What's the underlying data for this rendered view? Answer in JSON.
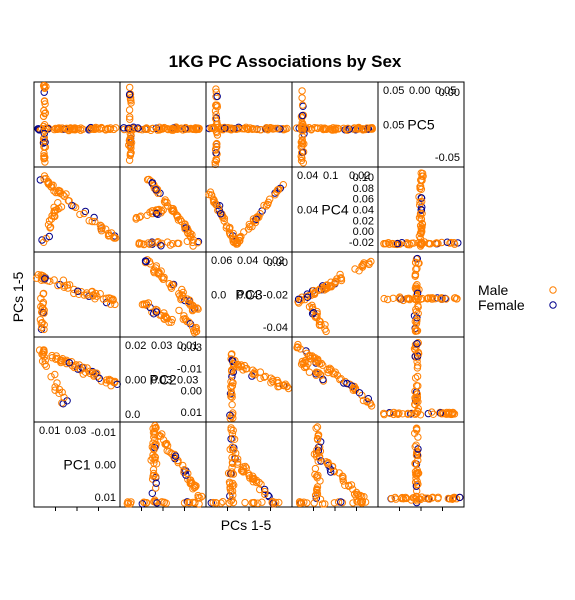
{
  "chart_data": {
    "type": "scatter",
    "subtype": "scatterplot-matrix",
    "title": "1KG PC Associations by Sex",
    "xlabel": "PCs 1-5",
    "ylabel": "PCs 1-5",
    "variables": [
      "PC1",
      "PC2",
      "PC3",
      "PC4",
      "PC5"
    ],
    "series": [
      {
        "name": "Male",
        "color": "#ff7f00"
      },
      {
        "name": "Female",
        "color": "#00008b"
      }
    ],
    "legend": {
      "position": "right",
      "marker": "open-circle"
    },
    "axis_ticks": {
      "PC1": {
        "major": [
          "-0.01",
          "0.00",
          "0.01"
        ],
        "minor": [
          "0.01",
          "0.03"
        ]
      },
      "PC2": {
        "major": [
          "-0.03",
          "-0.01",
          "0.00",
          "0.01"
        ],
        "minor": [
          "0.02",
          "0.03",
          "0.01",
          "0.00",
          "0.03",
          "0.03",
          "0.0"
        ]
      },
      "PC3": {
        "major": [
          "0.00",
          "-0.02",
          "-0.04"
        ],
        "minor": [
          "0.06",
          "0.04",
          "0.02",
          "0.0",
          "0.04"
        ]
      },
      "PC4": {
        "major": [
          "0.10",
          "0.08",
          "0.06",
          "0.04",
          "0.02",
          "0.00",
          "-0.02"
        ],
        "minor": [
          "0.04",
          "0.1",
          "0.02",
          "0.04"
        ]
      },
      "PC5": {
        "major": [
          "0.00",
          "-0.05"
        ],
        "minor": [
          "0.05",
          "0.00",
          "0.05",
          "0.05"
        ]
      }
    },
    "grid": false
  },
  "colors": {
    "male": "#ff7f00",
    "female": "#00008b",
    "frame": "#000000"
  }
}
